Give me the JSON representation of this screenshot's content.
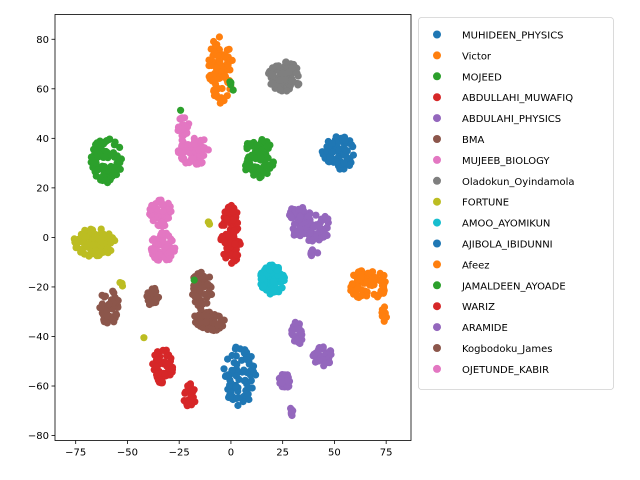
{
  "chart_data": {
    "type": "scatter",
    "title": "",
    "xlabel": "",
    "ylabel": "",
    "xlim": [
      -85,
      87
    ],
    "ylim": [
      -82,
      90
    ],
    "xticks": [
      -75,
      -50,
      -25,
      0,
      25,
      50,
      75
    ],
    "yticks": [
      -80,
      -60,
      -40,
      -20,
      0,
      20,
      40,
      60,
      80
    ],
    "xtick_labels": [
      "−75",
      "−50",
      "−25",
      "0",
      "25",
      "50",
      "75"
    ],
    "ytick_labels": [
      "−80",
      "−60",
      "−40",
      "−20",
      "0",
      "20",
      "40",
      "60",
      "80"
    ],
    "grid": false,
    "legend_position": "upper-right-outside",
    "series": [
      {
        "name": "MUHIDEEN_PHYSICS",
        "color": "#1f77b4",
        "clusters": [
          {
            "cx": 52,
            "cy": 34,
            "rx": 8,
            "ry": 7,
            "n": 75
          }
        ]
      },
      {
        "name": "Victor",
        "color": "#ff7f0e",
        "clusters": [
          {
            "cx": -5,
            "cy": 68,
            "rx": 6,
            "ry": 14,
            "n": 70
          }
        ]
      },
      {
        "name": "MOJEED",
        "color": "#2ca02c",
        "clusters": [
          {
            "cx": 13,
            "cy": 32,
            "rx": 8,
            "ry": 8,
            "n": 70
          },
          {
            "cx": 0,
            "cy": 61,
            "rx": 2,
            "ry": 2,
            "n": 4
          }
        ]
      },
      {
        "name": "ABDULLAHI_MUWAFIQ",
        "color": "#d62728",
        "clusters": [
          {
            "cx": -33,
            "cy": -52,
            "rx": 5,
            "ry": 7,
            "n": 60
          },
          {
            "cx": -20,
            "cy": -64,
            "rx": 3,
            "ry": 5,
            "n": 30
          }
        ]
      },
      {
        "name": "ABDULAHI_PHYSICS",
        "color": "#9467bd",
        "clusters": [
          {
            "cx": 39,
            "cy": 4,
            "rx": 10,
            "ry": 6,
            "n": 80
          },
          {
            "cx": 40,
            "cy": -6,
            "rx": 2,
            "ry": 2,
            "n": 6
          }
        ]
      },
      {
        "name": "BMA",
        "color": "#8c564b",
        "clusters": [
          {
            "cx": -14,
            "cy": -21,
            "rx": 5,
            "ry": 8,
            "n": 60
          },
          {
            "cx": -11,
            "cy": -34,
            "rx": 8,
            "ry": 4,
            "n": 50
          }
        ]
      },
      {
        "name": "MUJEEB_BIOLOGY",
        "color": "#e377c2",
        "clusters": [
          {
            "cx": -18,
            "cy": 35,
            "rx": 8,
            "ry": 6,
            "n": 60
          },
          {
            "cx": -23,
            "cy": 45,
            "rx": 3,
            "ry": 4,
            "n": 22
          }
        ]
      },
      {
        "name": "Oladokun_Oyindamola",
        "color": "#7f7f7f",
        "clusters": [
          {
            "cx": 26,
            "cy": 65,
            "rx": 8,
            "ry": 6,
            "n": 80
          }
        ]
      },
      {
        "name": "FORTUNE",
        "color": "#bcbd22",
        "clusters": [
          {
            "cx": -66,
            "cy": -2,
            "rx": 10,
            "ry": 6,
            "n": 90
          },
          {
            "cx": -10,
            "cy": 6,
            "rx": 1,
            "ry": 1,
            "n": 3
          },
          {
            "cx": -42,
            "cy": -40,
            "rx": 0.5,
            "ry": 0.5,
            "n": 1
          },
          {
            "cx": -53,
            "cy": -19,
            "rx": 1,
            "ry": 1,
            "n": 3
          }
        ]
      },
      {
        "name": "AMOO_AYOMIKUN",
        "color": "#17becf",
        "clusters": [
          {
            "cx": 20,
            "cy": -17,
            "rx": 6,
            "ry": 6,
            "n": 110
          }
        ]
      },
      {
        "name": "AJIBOLA_IBIDUNNI",
        "color": "#1f77b4",
        "clusters": [
          {
            "cx": 4,
            "cy": -56,
            "rx": 8,
            "ry": 12,
            "n": 75
          }
        ]
      },
      {
        "name": "Afeez",
        "color": "#ff7f0e",
        "clusters": [
          {
            "cx": 66,
            "cy": -19,
            "rx": 10,
            "ry": 6,
            "n": 70
          },
          {
            "cx": 74,
            "cy": -31,
            "rx": 1.5,
            "ry": 3,
            "n": 8
          }
        ]
      },
      {
        "name": "JAMALDEEN_AYOADE",
        "color": "#2ca02c",
        "clusters": [
          {
            "cx": -60,
            "cy": 31,
            "rx": 8,
            "ry": 9,
            "n": 90
          },
          {
            "cx": -24,
            "cy": 51,
            "rx": 0.5,
            "ry": 0.5,
            "n": 1
          },
          {
            "cx": -18,
            "cy": -17,
            "rx": 0.5,
            "ry": 0.5,
            "n": 1
          }
        ]
      },
      {
        "name": "WARIZ",
        "color": "#d62728",
        "clusters": [
          {
            "cx": 0,
            "cy": 1,
            "rx": 5,
            "ry": 12,
            "n": 90
          }
        ]
      },
      {
        "name": "ARAMIDE",
        "color": "#9467bd",
        "clusters": [
          {
            "cx": 32,
            "cy": 10,
            "rx": 4,
            "ry": 3,
            "n": 20
          },
          {
            "cx": 32,
            "cy": -39,
            "rx": 3,
            "ry": 5,
            "n": 25
          },
          {
            "cx": 44,
            "cy": -48,
            "rx": 5,
            "ry": 4,
            "n": 30
          },
          {
            "cx": 26,
            "cy": -58,
            "rx": 3,
            "ry": 3,
            "n": 22
          },
          {
            "cx": 29,
            "cy": -71,
            "rx": 1,
            "ry": 2,
            "n": 8
          }
        ]
      },
      {
        "name": "Kogbodoku_James",
        "color": "#8c564b",
        "clusters": [
          {
            "cx": -38,
            "cy": -24,
            "rx": 3,
            "ry": 4,
            "n": 20
          },
          {
            "cx": -59,
            "cy": -28,
            "rx": 5,
            "ry": 7,
            "n": 40
          }
        ]
      },
      {
        "name": "OJETUNDE_KABIR",
        "color": "#e377c2",
        "clusters": [
          {
            "cx": -34,
            "cy": 10,
            "rx": 6,
            "ry": 6,
            "n": 50
          },
          {
            "cx": -33,
            "cy": -4,
            "rx": 6,
            "ry": 6,
            "n": 55
          }
        ]
      }
    ]
  }
}
